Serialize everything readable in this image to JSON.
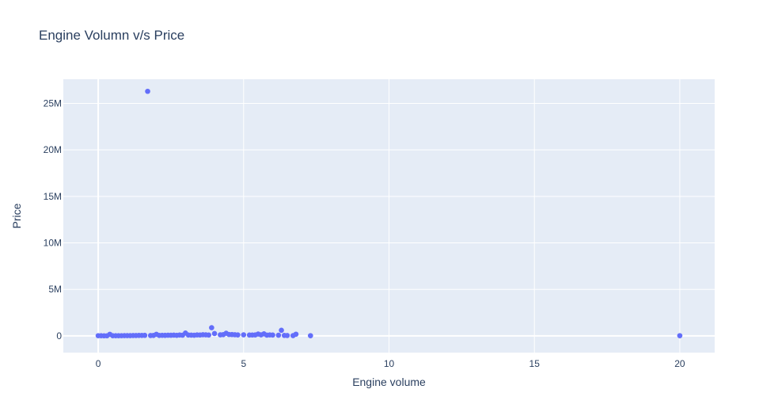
{
  "chart_data": {
    "type": "scatter",
    "title": "Engine Volumn v/s Price",
    "xlabel": "Engine volume",
    "ylabel": "Price",
    "xlim": [
      -1.2,
      21.2
    ],
    "ylim": [
      -1800000,
      27600000
    ],
    "x_ticks": [
      0,
      5,
      10,
      15,
      20
    ],
    "x_tick_labels": [
      "0",
      "5",
      "10",
      "15",
      "20"
    ],
    "y_ticks": [
      0,
      5000000,
      10000000,
      15000000,
      20000000,
      25000000
    ],
    "y_tick_labels": [
      "0",
      "5M",
      "10M",
      "15M",
      "20M",
      "25M"
    ],
    "grid": true,
    "legend": "none",
    "colors": {
      "marker": "#636efa",
      "plot_bg": "#e5ecf6",
      "grid": "#ffffff",
      "text": "#2a3f5f"
    },
    "series": [
      {
        "x": [
          1.7,
          3.9,
          6.3,
          3.0,
          4.4,
          0.4,
          2.0,
          5.5,
          5.7,
          6.8,
          0.0,
          0.1,
          0.2,
          0.3,
          0.5,
          0.6,
          0.7,
          0.8,
          0.9,
          1.0,
          1.1,
          1.2,
          1.3,
          1.4,
          1.5,
          1.6,
          1.8,
          1.9,
          2.1,
          2.2,
          2.3,
          2.4,
          2.5,
          2.6,
          2.7,
          2.8,
          2.9,
          3.1,
          3.2,
          3.3,
          3.4,
          3.5,
          3.6,
          3.7,
          3.8,
          4.0,
          4.2,
          4.3,
          4.5,
          4.6,
          4.7,
          4.8,
          5.0,
          5.2,
          5.3,
          5.4,
          5.6,
          5.8,
          5.9,
          6.0,
          6.2,
          6.4,
          6.5,
          6.7,
          7.3,
          20.0
        ],
        "y": [
          26300000,
          880000,
          600000,
          300000,
          280000,
          170000,
          170000,
          200000,
          220000,
          180000,
          20000,
          15000,
          12000,
          10000,
          15000,
          18000,
          20000,
          22000,
          25000,
          30000,
          28000,
          35000,
          40000,
          45000,
          50000,
          55000,
          40000,
          45000,
          50000,
          60000,
          55000,
          70000,
          65000,
          80000,
          60000,
          90000,
          75000,
          90000,
          80000,
          70000,
          100000,
          95000,
          120000,
          110000,
          90000,
          250000,
          110000,
          130000,
          150000,
          140000,
          120000,
          100000,
          110000,
          90000,
          95000,
          100000,
          110000,
          80000,
          100000,
          90000,
          70000,
          50000,
          40000,
          30000,
          20000,
          20000
        ]
      }
    ]
  }
}
